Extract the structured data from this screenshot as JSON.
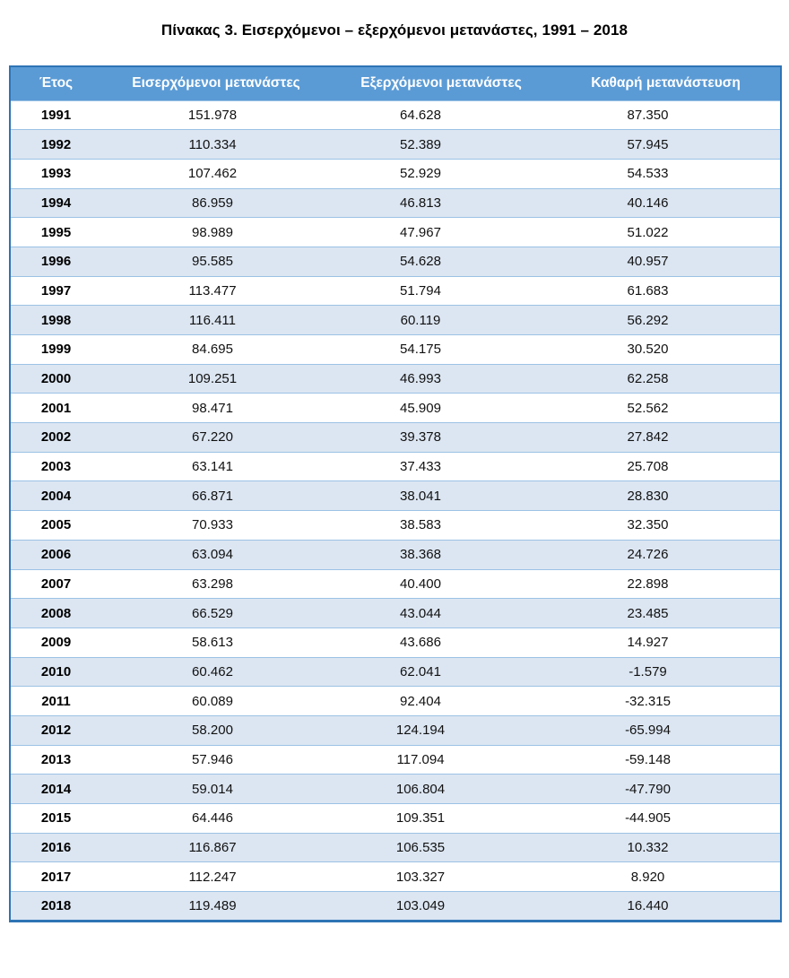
{
  "page_title": "Πίνακας 3. Εισερχόμενοι – εξερχόμενοι μετανάστες, 1991 – 2018",
  "table": {
    "columns": [
      "Έτος",
      "Εισερχόμενοι μετανάστες",
      "Εξερχόμενοι μετανάστες",
      "Καθαρή μετανάστευση"
    ],
    "rows": [
      [
        "1991",
        "151.978",
        "64.628",
        "87.350"
      ],
      [
        "1992",
        "110.334",
        "52.389",
        "57.945"
      ],
      [
        "1993",
        "107.462",
        "52.929",
        "54.533"
      ],
      [
        "1994",
        "86.959",
        "46.813",
        "40.146"
      ],
      [
        "1995",
        "98.989",
        "47.967",
        "51.022"
      ],
      [
        "1996",
        "95.585",
        "54.628",
        "40.957"
      ],
      [
        "1997",
        "113.477",
        "51.794",
        "61.683"
      ],
      [
        "1998",
        "116.411",
        "60.119",
        "56.292"
      ],
      [
        "1999",
        "84.695",
        "54.175",
        "30.520"
      ],
      [
        "2000",
        "109.251",
        "46.993",
        "62.258"
      ],
      [
        "2001",
        "98.471",
        "45.909",
        "52.562"
      ],
      [
        "2002",
        "67.220",
        "39.378",
        "27.842"
      ],
      [
        "2003",
        "63.141",
        "37.433",
        "25.708"
      ],
      [
        "2004",
        "66.871",
        "38.041",
        "28.830"
      ],
      [
        "2005",
        "70.933",
        "38.583",
        "32.350"
      ],
      [
        "2006",
        "63.094",
        "38.368",
        "24.726"
      ],
      [
        "2007",
        "63.298",
        "40.400",
        "22.898"
      ],
      [
        "2008",
        "66.529",
        "43.044",
        "23.485"
      ],
      [
        "2009",
        "58.613",
        "43.686",
        "14.927"
      ],
      [
        "2010",
        "60.462",
        "62.041",
        "-1.579"
      ],
      [
        "2011",
        "60.089",
        "92.404",
        "-32.315"
      ],
      [
        "2012",
        "58.200",
        "124.194",
        "-65.994"
      ],
      [
        "2013",
        "57.946",
        "117.094",
        "-59.148"
      ],
      [
        "2014",
        "59.014",
        "106.804",
        "-47.790"
      ],
      [
        "2015",
        "64.446",
        "109.351",
        "-44.905"
      ],
      [
        "2016",
        "116.867",
        "106.535",
        "10.332"
      ],
      [
        "2017",
        "112.247",
        "103.327",
        "8.920"
      ],
      [
        "2018",
        "119.489",
        "103.049",
        "16.440"
      ]
    ]
  },
  "colors": {
    "header_bg": "#5B9BD5",
    "header_text": "#FFFFFF",
    "stripe_bg": "#DCE6F2",
    "row_border": "#9CC2E5",
    "outer_border": "#2E74B5",
    "title_text": "#000000"
  }
}
